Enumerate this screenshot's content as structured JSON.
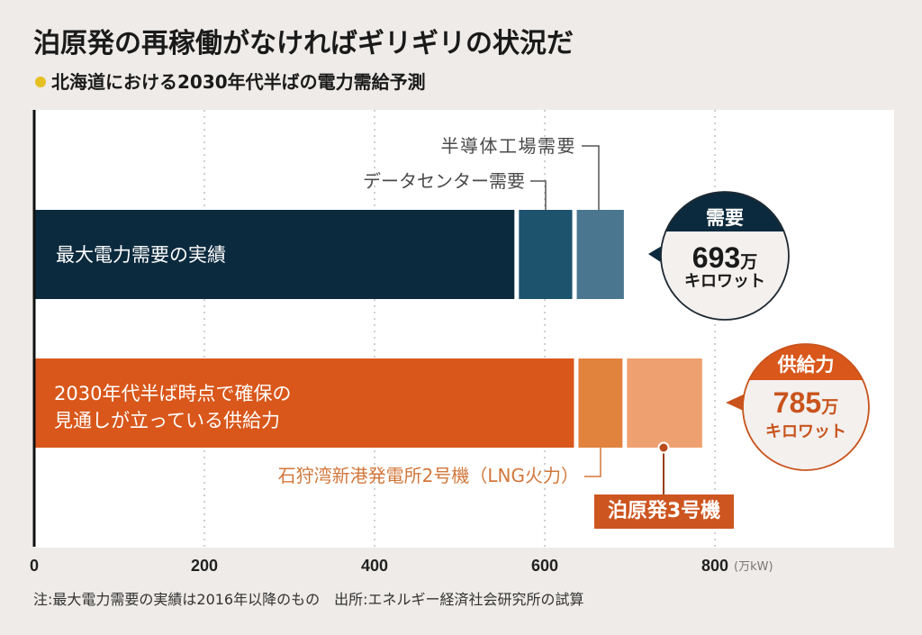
{
  "colors": {
    "background": "#eeebe8",
    "plot_background": "#ffffff",
    "subtitle_dot": "#e5c020",
    "gridline": "#b5b5b5",
    "axis": "#111111",
    "demand_accent": "#0c2a3e",
    "supply_accent": "#c9531c"
  },
  "chart_data": {
    "type": "bar",
    "orientation": "horizontal",
    "stacked": true,
    "title": "泊原発の再稼働がなければギリギリの状況だ",
    "subtitle": "北海道における2030年代半ばの電力需給予測",
    "x_unit": "(万kW)",
    "xlim": [
      0,
      1010
    ],
    "xticks": [
      0,
      200,
      400,
      600,
      800
    ],
    "xtick_labels": [
      "0",
      "200",
      "400",
      "600",
      "800"
    ],
    "grid": true,
    "bars": [
      {
        "name": "需要",
        "segments": [
          {
            "name": "最大電力需要の実績",
            "value": 567,
            "color": "#0c2a3e"
          },
          {
            "name": "データセンター需要",
            "value": 68,
            "color": "#1e536e"
          },
          {
            "name": "半導体工場需要",
            "value": 58,
            "color": "#4b768f"
          }
        ],
        "callout": {
          "value": "693",
          "unit_prefix": "万",
          "unit": "キロワット"
        }
      },
      {
        "name": "供給力",
        "segments": [
          {
            "name_lines": [
              "2030年代半ば時点で確保の",
              "見通しが立っている供給力"
            ],
            "value": 637,
            "color": "#d9571b"
          },
          {
            "name": "石狩湾新港発電所2号機（LNG火力）",
            "value": 57,
            "color": "#e1823d"
          },
          {
            "name": "泊原発3号機",
            "value": 91,
            "color": "#eea070"
          }
        ],
        "callout": {
          "value": "785",
          "unit_prefix": "万",
          "unit": "キロワット"
        }
      }
    ]
  },
  "footnote": {
    "note": "注:最大電力需要の実績は2016年以降のもの",
    "source": "出所:エネルギー経済社会研究所の試算"
  }
}
